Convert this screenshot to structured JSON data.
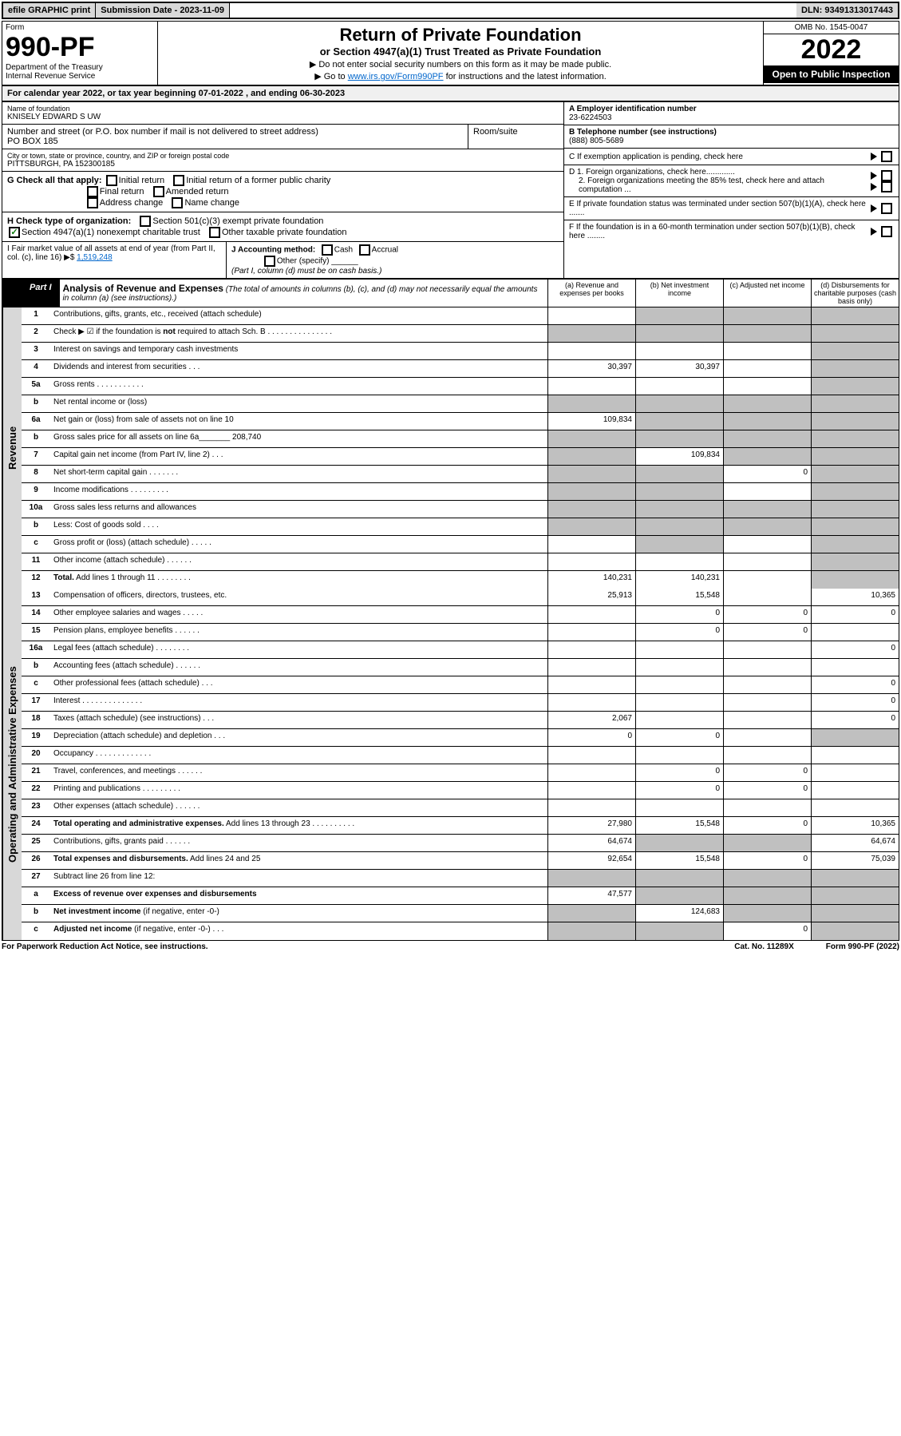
{
  "topbar": {
    "efile": "efile GRAPHIC print",
    "sub_label": "Submission Date - 2023-11-09",
    "dln": "DLN: 93491313017443"
  },
  "header": {
    "form_label": "Form",
    "form_num": "990-PF",
    "dept1": "Department of the Treasury",
    "dept2": "Internal Revenue Service",
    "title": "Return of Private Foundation",
    "subtitle": "or Section 4947(a)(1) Trust Treated as Private Foundation",
    "instr1": "▶ Do not enter social security numbers on this form as it may be made public.",
    "instr2_pre": "▶ Go to ",
    "instr2_link": "www.irs.gov/Form990PF",
    "instr2_post": " for instructions and the latest information.",
    "omb": "OMB No. 1545-0047",
    "year": "2022",
    "open": "Open to Public Inspection"
  },
  "cal_year": "For calendar year 2022, or tax year beginning 07-01-2022          , and ending 06-30-2023",
  "info": {
    "name_lbl": "Name of foundation",
    "name": "KNISELY EDWARD S UW",
    "addr_lbl": "Number and street (or P.O. box number if mail is not delivered to street address)",
    "addr": "PO BOX 185",
    "room_lbl": "Room/suite",
    "city_lbl": "City or town, state or province, country, and ZIP or foreign postal code",
    "city": "PITTSBURGH, PA  152300185",
    "a_lbl": "A Employer identification number",
    "a_val": "23-6224503",
    "b_lbl": "B Telephone number (see instructions)",
    "b_val": "(888) 805-5689",
    "c_lbl": "C If exemption application is pending, check here",
    "d1": "D 1. Foreign organizations, check here.............",
    "d2": "2. Foreign organizations meeting the 85% test, check here and attach computation ...",
    "e_lbl": "E  If private foundation status was terminated under section 507(b)(1)(A), check here .......",
    "f_lbl": "F  If the foundation is in a 60-month termination under section 507(b)(1)(B), check here ........"
  },
  "checks": {
    "g_lbl": "G Check all that apply:",
    "g1": "Initial return",
    "g2": "Initial return of a former public charity",
    "g3": "Final return",
    "g4": "Amended return",
    "g5": "Address change",
    "g6": "Name change",
    "h_lbl": "H Check type of organization:",
    "h1": "Section 501(c)(3) exempt private foundation",
    "h2": "Section 4947(a)(1) nonexempt charitable trust",
    "h3": "Other taxable private foundation",
    "i_lbl": "I Fair market value of all assets at end of year (from Part II, col. (c), line 16) ▶$ ",
    "i_val": "1,519,248",
    "j_lbl": "J Accounting method:",
    "j1": "Cash",
    "j2": "Accrual",
    "j3": "Other (specify)",
    "j_note": "(Part I, column (d) must be on cash basis.)"
  },
  "part1": {
    "label": "Part I",
    "title": "Analysis of Revenue and Expenses",
    "title_note": "(The total of amounts in columns (b), (c), and (d) may not necessarily equal the amounts in column (a) (see instructions).)",
    "col_a": "(a)   Revenue and expenses per books",
    "col_b": "(b)   Net investment income",
    "col_c": "(c)   Adjusted net income",
    "col_d": "(d)   Disbursements for charitable purposes (cash basis only)"
  },
  "side_rev": "Revenue",
  "side_exp": "Operating and Administrative Expenses",
  "rows": [
    {
      "n": "1",
      "d": "g",
      "a": "",
      "b": "g",
      "c": "g"
    },
    {
      "n": "2",
      "d": "g",
      "a": "g",
      "b": "g",
      "c": "g"
    },
    {
      "n": "3",
      "d": "g",
      "a": "",
      "b": "",
      "c": ""
    },
    {
      "n": "4",
      "d": "g",
      "a": "30,397",
      "b": "30,397",
      "c": ""
    },
    {
      "n": "5a",
      "d": "g",
      "a": "",
      "b": "",
      "c": ""
    },
    {
      "n": "b",
      "d": "g",
      "a": "g",
      "b": "g",
      "c": "g"
    },
    {
      "n": "6a",
      "d": "g",
      "a": "109,834",
      "b": "g",
      "c": "g"
    },
    {
      "n": "b",
      "d": "g",
      "a": "g",
      "b": "g",
      "c": "g"
    },
    {
      "n": "7",
      "d": "g",
      "a": "g",
      "b": "109,834",
      "c": "g"
    },
    {
      "n": "8",
      "d": "g",
      "a": "g",
      "b": "g",
      "c": "0"
    },
    {
      "n": "9",
      "d": "g",
      "a": "g",
      "b": "g",
      "c": ""
    },
    {
      "n": "10a",
      "d": "g",
      "a": "g",
      "b": "g",
      "c": "g"
    },
    {
      "n": "b",
      "d": "g",
      "a": "g",
      "b": "g",
      "c": "g"
    },
    {
      "n": "c",
      "d": "g",
      "a": "",
      "b": "g",
      "c": ""
    },
    {
      "n": "11",
      "d": "g",
      "a": "",
      "b": "",
      "c": ""
    },
    {
      "n": "12",
      "d": "g",
      "a": "140,231",
      "b": "140,231",
      "c": "",
      "bold": true
    }
  ],
  "exp_rows": [
    {
      "n": "13",
      "d": "10,365",
      "a": "25,913",
      "b": "15,548",
      "c": ""
    },
    {
      "n": "14",
      "d": "0",
      "a": "",
      "b": "0",
      "c": "0"
    },
    {
      "n": "15",
      "d": "",
      "a": "",
      "b": "0",
      "c": "0"
    },
    {
      "n": "16a",
      "d": "0",
      "a": "",
      "b": "",
      "c": ""
    },
    {
      "n": "b",
      "d": "",
      "a": "",
      "b": "",
      "c": ""
    },
    {
      "n": "c",
      "d": "0",
      "a": "",
      "b": "",
      "c": ""
    },
    {
      "n": "17",
      "d": "0",
      "a": "",
      "b": "",
      "c": ""
    },
    {
      "n": "18",
      "d": "0",
      "a": "2,067",
      "b": "",
      "c": ""
    },
    {
      "n": "19",
      "d": "g",
      "a": "0",
      "b": "0",
      "c": ""
    },
    {
      "n": "20",
      "d": "",
      "a": "",
      "b": "",
      "c": ""
    },
    {
      "n": "21",
      "d": "",
      "a": "",
      "b": "0",
      "c": "0"
    },
    {
      "n": "22",
      "d": "",
      "a": "",
      "b": "0",
      "c": "0"
    },
    {
      "n": "23",
      "d": "",
      "a": "",
      "b": "",
      "c": ""
    },
    {
      "n": "24",
      "d": "10,365",
      "a": "27,980",
      "b": "15,548",
      "c": "0",
      "bold": true
    },
    {
      "n": "25",
      "d": "64,674",
      "a": "64,674",
      "b": "g",
      "c": "g"
    },
    {
      "n": "26",
      "d": "75,039",
      "a": "92,654",
      "b": "15,548",
      "c": "0",
      "bold": true
    },
    {
      "n": "27",
      "d": "g",
      "a": "g",
      "b": "g",
      "c": "g"
    },
    {
      "n": "a",
      "d": "g",
      "a": "47,577",
      "b": "g",
      "c": "g",
      "bold": true
    },
    {
      "n": "b",
      "d": "g",
      "a": "g",
      "b": "124,683",
      "c": "g",
      "bold": true
    },
    {
      "n": "c",
      "d": "g",
      "a": "g",
      "b": "g",
      "c": "0",
      "bold": true
    }
  ],
  "footer": {
    "left": "For Paperwork Reduction Act Notice, see instructions.",
    "mid": "Cat. No. 11289X",
    "right": "Form 990-PF (2022)"
  }
}
